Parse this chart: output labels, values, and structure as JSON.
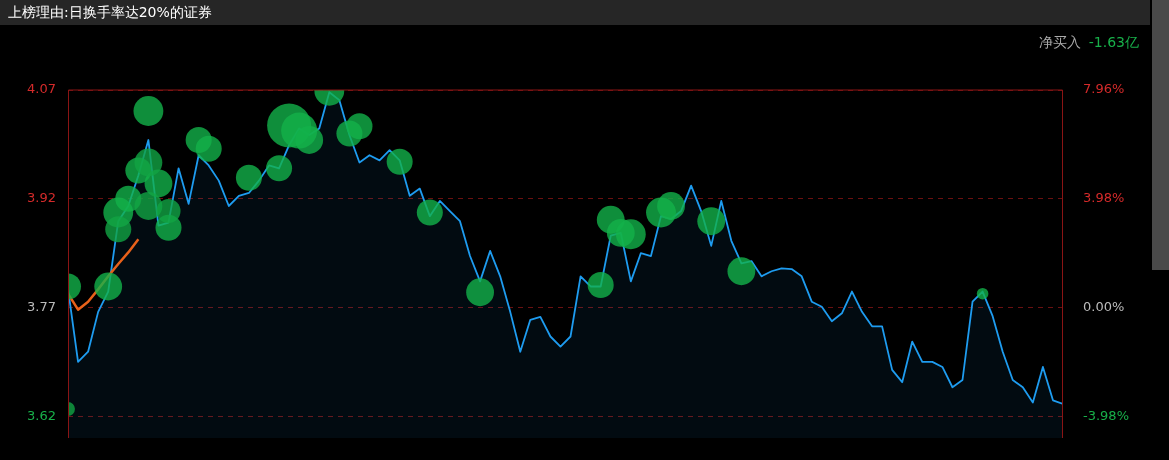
{
  "chart_data": {
    "type": "area",
    "title": "上榜理由:日换手率达20%的证券",
    "annotations": [
      "净买入",
      "-1.63亿"
    ],
    "categories": [
      null,
      null,
      null,
      null,
      null,
      null,
      null,
      null,
      null,
      null,
      null,
      null,
      null,
      null,
      null,
      null,
      null,
      null,
      null,
      null,
      null,
      null,
      null,
      null,
      null,
      null,
      null,
      null,
      null,
      null,
      null,
      null,
      null,
      null,
      null,
      null,
      null,
      null,
      null,
      null,
      null,
      null,
      null,
      null,
      null,
      null,
      null,
      null,
      null,
      null,
      null,
      null,
      null,
      null,
      null,
      null,
      null,
      null,
      null,
      null,
      null,
      null,
      null,
      null,
      null,
      null,
      null,
      null,
      null,
      null,
      null,
      null,
      null,
      null,
      null,
      null,
      null,
      null,
      null,
      null,
      null,
      null,
      null,
      null,
      null,
      null,
      null,
      null,
      null,
      null,
      null,
      null,
      null,
      null,
      null,
      null,
      null,
      null,
      null,
      null
    ],
    "series": [
      {
        "color": "#1e9cf0",
        "values": [
          3.796,
          3.695,
          3.709,
          3.764,
          3.792,
          3.889,
          3.91,
          3.952,
          4.001,
          3.883,
          3.887,
          3.962,
          3.913,
          3.98,
          3.966,
          3.945,
          3.91,
          3.924,
          3.928,
          3.945,
          3.966,
          3.962,
          3.994,
          4.017,
          4.008,
          4.017,
          4.067,
          4.056,
          4.008,
          3.97,
          3.98,
          3.973,
          3.987,
          3.973,
          3.924,
          3.934,
          3.896,
          3.917,
          3.903,
          3.889,
          3.841,
          3.806,
          3.848,
          3.813,
          3.764,
          3.709,
          3.753,
          3.757,
          3.73,
          3.716,
          3.73,
          3.813,
          3.799,
          3.799,
          3.869,
          3.873,
          3.806,
          3.845,
          3.841,
          3.896,
          3.892,
          3.903,
          3.938,
          3.903,
          3.855,
          3.917,
          3.862,
          3.831,
          3.834,
          3.813,
          3.82,
          3.824,
          3.823,
          3.813,
          3.778,
          3.771,
          3.751,
          3.762,
          3.792,
          3.764,
          3.744,
          3.744,
          3.684,
          3.667,
          3.723,
          3.695,
          3.695,
          3.688,
          3.66,
          3.67,
          3.778,
          3.792,
          3.758,
          3.709,
          3.67,
          3.66,
          3.639,
          3.688,
          3.642,
          3.637
        ]
      },
      {
        "type": "line",
        "color": "#e8611a",
        "values": [
          3.789,
          3.767,
          3.778,
          3.795,
          3.813,
          3.83,
          3.846,
          3.864,
          null,
          null,
          null,
          null,
          null,
          null,
          null,
          null,
          null,
          null,
          null,
          null,
          null,
          null,
          null,
          null,
          null,
          null,
          null,
          null,
          null,
          null,
          null,
          null,
          null,
          null,
          null,
          null,
          null,
          null,
          null,
          null,
          null,
          null,
          null,
          null,
          null,
          null,
          null,
          null,
          null,
          null,
          null,
          null,
          null,
          null,
          null,
          null,
          null,
          null,
          null,
          null,
          null,
          null,
          null,
          null,
          null,
          null,
          null,
          null,
          null,
          null,
          null,
          null,
          null,
          null,
          null,
          null,
          null,
          null,
          null,
          null,
          null,
          null,
          null,
          null,
          null,
          null,
          null,
          null,
          null,
          null,
          null,
          null,
          null,
          null,
          null,
          null,
          null,
          null,
          null,
          null
        ]
      },
      {
        "type": "bubble",
        "color": "#13b24a",
        "values": [
          3.799,
          null,
          null,
          null,
          3.799,
          3.901,
          3.92,
          3.959,
          4.041,
          3.941,
          3.88,
          null,
          null,
          4.001,
          3.989,
          null,
          null,
          null,
          3.949,
          null,
          null,
          3.962,
          4.021,
          4.014,
          4.001,
          null,
          4.069,
          null,
          4.01,
          4.02,
          null,
          null,
          null,
          3.971,
          null,
          null,
          3.901,
          null,
          null,
          null,
          null,
          3.791,
          null,
          null,
          null,
          null,
          null,
          null,
          null,
          null,
          null,
          null,
          null,
          3.801,
          3.891,
          3.873,
          3.871,
          null,
          null,
          3.901,
          3.91,
          null,
          null,
          null,
          3.889,
          null,
          null,
          3.82,
          null,
          null,
          null,
          null,
          null,
          null,
          null,
          null,
          null,
          null,
          null,
          null,
          null,
          null,
          null,
          null,
          null,
          null,
          null,
          null,
          null,
          null,
          null,
          3.789,
          null,
          null,
          null,
          null,
          null,
          null,
          null,
          null
        ],
        "sizes": [
          0.35,
          null,
          null,
          null,
          0.4,
          0.46,
          0.35,
          0.35,
          0.46,
          0.4,
          0.35,
          null,
          null,
          0.35,
          0.35,
          null,
          null,
          null,
          0.35,
          null,
          null,
          0.35,
          1,
          0.67,
          0.4,
          null,
          0.46,
          null,
          0.35,
          0.35,
          null,
          null,
          null,
          0.35,
          null,
          null,
          0.35,
          null,
          null,
          null,
          null,
          0.4,
          null,
          null,
          null,
          null,
          null,
          null,
          null,
          null,
          null,
          null,
          null,
          0.35,
          0.4,
          0.4,
          0.46,
          null,
          null,
          0.46,
          0.4,
          null,
          null,
          null,
          0.4,
          null,
          null,
          0.4,
          null,
          null,
          null,
          null,
          null,
          null,
          null,
          null,
          null,
          null,
          null,
          null,
          null,
          null,
          null,
          null,
          null,
          null,
          null,
          null,
          null,
          null,
          null,
          0.07,
          null,
          null,
          null,
          null,
          null,
          null,
          null,
          null
        ]
      },
      {
        "type": "bubble",
        "color": "#12a444",
        "values": [
          3.63,
          null,
          null,
          null,
          null,
          3.878,
          null,
          null,
          3.97,
          null,
          3.903,
          null,
          null,
          null,
          null,
          null,
          null,
          null,
          null,
          null,
          null,
          null,
          null,
          null,
          null,
          null,
          null,
          null,
          null,
          null,
          null,
          null,
          null,
          null,
          null,
          null,
          null,
          null,
          null,
          null,
          null,
          null,
          null,
          null,
          null,
          null,
          null,
          null,
          null,
          null,
          null,
          null,
          null,
          null,
          null,
          null,
          null,
          null,
          null,
          null,
          null,
          null,
          null,
          null,
          null,
          null,
          null,
          null,
          null,
          null,
          null,
          null,
          null,
          null,
          null,
          null,
          null,
          null,
          null,
          null,
          null,
          null,
          null,
          null,
          null,
          null,
          null,
          null,
          null,
          null,
          null,
          null,
          null,
          null,
          null,
          null,
          null,
          null,
          null,
          null
        ],
        "sizes": [
          0.1,
          null,
          null,
          null,
          null,
          0.35,
          null,
          null,
          0.4,
          null,
          0.3,
          null,
          null,
          null,
          null,
          null,
          null,
          null,
          null,
          null,
          null,
          null,
          null,
          null,
          null,
          null,
          null,
          null,
          null,
          null,
          null,
          null,
          null,
          null,
          null,
          null,
          null,
          null,
          null,
          null,
          null,
          null,
          null,
          null,
          null,
          null,
          null,
          null,
          null,
          null,
          null,
          null,
          null,
          null,
          null,
          null,
          null,
          null,
          null,
          null,
          null,
          null,
          null,
          null,
          null,
          null,
          null,
          null,
          null,
          null,
          null,
          null,
          null,
          null,
          null,
          null,
          null,
          null,
          null,
          null,
          null,
          null,
          null,
          null,
          null,
          null,
          null,
          null,
          null,
          null,
          null,
          null,
          null,
          null,
          null,
          null,
          null,
          null,
          null,
          null
        ]
      },
      {
        "type": "bubble",
        "color": "#12a444",
        "values": [
          null,
          null,
          null,
          null,
          null,
          null,
          null,
          null,
          3.91,
          null,
          null,
          null,
          null,
          null,
          null,
          null,
          null,
          null,
          null,
          null,
          null,
          null,
          null,
          null,
          null,
          null,
          null,
          null,
          null,
          null,
          null,
          null,
          null,
          null,
          null,
          null,
          null,
          null,
          null,
          null,
          null,
          null,
          null,
          null,
          null,
          null,
          null,
          null,
          null,
          null,
          null,
          null,
          null,
          null,
          null,
          null,
          null,
          null,
          null,
          null,
          null,
          null,
          null,
          null,
          null,
          null,
          null,
          null,
          null,
          null,
          null,
          null,
          null,
          null,
          null,
          null,
          null,
          null,
          null,
          null,
          null,
          null,
          null,
          null,
          null,
          null,
          null,
          null,
          null,
          null,
          null,
          null,
          null,
          null,
          null,
          null,
          null,
          null,
          null,
          null
        ],
        "sizes": [
          null,
          null,
          null,
          null,
          null,
          null,
          null,
          null,
          0.4,
          null,
          null,
          null,
          null,
          null,
          null,
          null,
          null,
          null,
          null,
          null,
          null,
          null,
          null,
          null,
          null,
          null,
          null,
          null,
          null,
          null,
          null,
          null,
          null,
          null,
          null,
          null,
          null,
          null,
          null,
          null,
          null,
          null,
          null,
          null,
          null,
          null,
          null,
          null,
          null,
          null,
          null,
          null,
          null,
          null,
          null,
          null,
          null,
          null,
          null,
          null,
          null,
          null,
          null,
          null,
          null,
          null,
          null,
          null,
          null,
          null,
          null,
          null,
          null,
          null,
          null,
          null,
          null,
          null,
          null,
          null,
          null,
          null,
          null,
          null,
          null,
          null,
          null,
          null,
          null,
          null,
          null,
          null,
          null,
          null,
          null,
          null,
          null,
          null,
          null,
          null
        ]
      }
    ],
    "ylim": [
      3.59,
      4.07
    ],
    "yticks": [
      3.62,
      3.77,
      3.92,
      4.07
    ],
    "y2lim": [
      -4.776,
      7.96
    ],
    "y2ticks": [
      {
        "value": -3.98,
        "label": "-3.98%"
      },
      {
        "value": 0,
        "label": "0.00%"
      },
      {
        "value": 3.98,
        "label": "3.98%"
      },
      {
        "value": 7.96,
        "label": "7.96%"
      }
    ],
    "grid": "y"
  }
}
